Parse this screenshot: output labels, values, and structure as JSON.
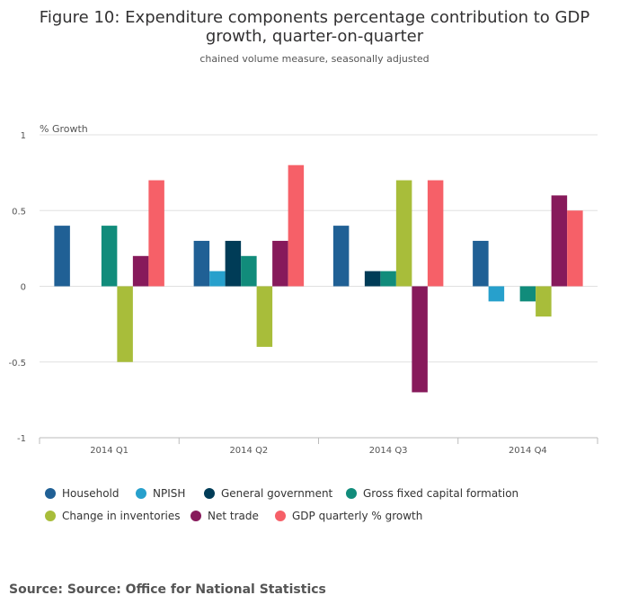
{
  "chart_data": {
    "type": "bar",
    "title_lines": [
      "Figure 10: Expenditure components percentage contribution to GDP",
      "growth, quarter-on-quarter"
    ],
    "subtitle": "chained volume measure, seasonally adjusted",
    "ylabel": "% Growth",
    "xlabel": "",
    "ylim": [
      -1,
      1
    ],
    "yticks": [
      1,
      0.5,
      0,
      -0.5,
      -1
    ],
    "ytick_labels": [
      "1",
      "0.5",
      "0",
      "-0.5",
      "-1"
    ],
    "categories": [
      "2014 Q1",
      "2014 Q2",
      "2014 Q3",
      "2014 Q4"
    ],
    "series": [
      {
        "name": "Household",
        "color": "#206095",
        "values": [
          0.4,
          0.3,
          0.4,
          0.3
        ]
      },
      {
        "name": "NPISH",
        "color": "#27a0cc",
        "values": [
          0,
          0.1,
          0,
          -0.1
        ]
      },
      {
        "name": "General government",
        "color": "#003c57",
        "values": [
          0,
          0.3,
          0.1,
          0
        ]
      },
      {
        "name": "Gross fixed capital formation",
        "color": "#118c7b",
        "values": [
          0.4,
          0.2,
          0.1,
          -0.1
        ]
      },
      {
        "name": "Change in inventories",
        "color": "#a8bd3a",
        "values": [
          -0.5,
          -0.4,
          0.7,
          -0.2
        ]
      },
      {
        "name": "Net trade",
        "color": "#871a5b",
        "values": [
          0.2,
          0.3,
          -0.7,
          0.6
        ]
      },
      {
        "name": "GDP quarterly % growth",
        "color": "#f66068",
        "values": [
          0.7,
          0.8,
          0.7,
          0.5
        ]
      }
    ],
    "grid": true,
    "legend_position": "bottom"
  },
  "source": "Source: Source: Office for National Statistics"
}
